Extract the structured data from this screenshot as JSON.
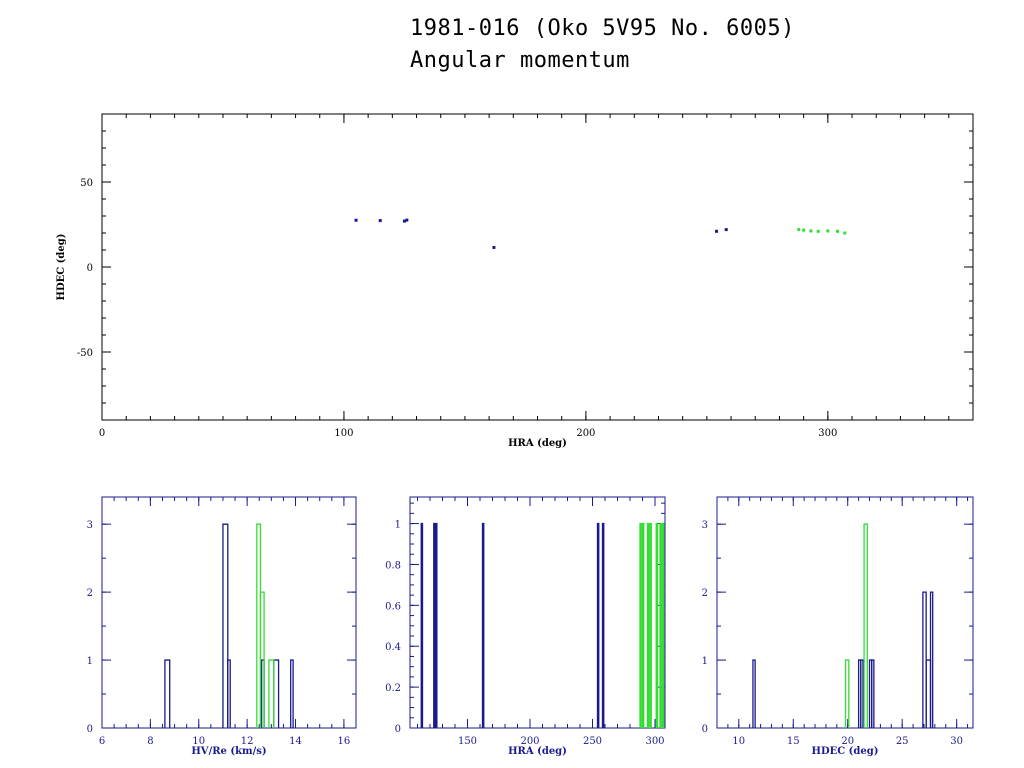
{
  "header": {
    "title": "1981-016 (Oko 5V95 No. 6005)",
    "subtitle": "Angular momentum"
  },
  "colors": {
    "blue": "#1a1a8c",
    "green": "#33dd33",
    "axis_dark": "#000000",
    "axis_blue": "#1a1a8c"
  },
  "chart_data": [
    {
      "type": "scatter",
      "xlabel": "HRA (deg)",
      "ylabel": "HDEC (deg)",
      "xlim": [
        0,
        360
      ],
      "ylim": [
        -90,
        90
      ],
      "xticks": [
        0,
        100,
        200,
        300
      ],
      "yticks": [
        -50,
        0,
        50
      ],
      "grid": false,
      "series": [
        {
          "color": "blue",
          "x": [
            105,
            115,
            125,
            126,
            162,
            254,
            258
          ],
          "y": [
            27.5,
            27.3,
            27.0,
            27.6,
            11.5,
            21.0,
            22.0
          ]
        },
        {
          "color": "green",
          "x": [
            288,
            290,
            293,
            296,
            300,
            304,
            307
          ],
          "y": [
            22.0,
            21.7,
            21.2,
            21.0,
            21.2,
            21.0,
            20.0
          ]
        }
      ]
    },
    {
      "type": "histogram",
      "xlabel": "HV/Re (km/s)",
      "ylabel": "",
      "xlim": [
        6,
        16.5
      ],
      "ylim": [
        0,
        3.4
      ],
      "xticks": [
        6,
        8,
        10,
        12,
        14,
        16
      ],
      "yticks": [
        0,
        1,
        2,
        3
      ],
      "series": [
        {
          "color": "blue",
          "bins": [
            [
              8.6,
              8.8,
              1
            ],
            [
              11.0,
              11.2,
              3
            ],
            [
              11.2,
              11.3,
              1
            ],
            [
              12.6,
              12.7,
              1
            ],
            [
              13.1,
              13.3,
              1
            ],
            [
              13.8,
              13.9,
              1
            ]
          ]
        },
        {
          "color": "green",
          "bins": [
            [
              12.4,
              12.55,
              3
            ],
            [
              12.55,
              12.7,
              2
            ],
            [
              12.9,
              13.1,
              1
            ]
          ]
        }
      ]
    },
    {
      "type": "histogram",
      "xlabel": "HRA (deg)",
      "ylabel": "",
      "xlim": [
        104,
        308
      ],
      "ylim": [
        0,
        1.13
      ],
      "xticks": [
        150,
        200,
        250,
        300
      ],
      "yticks": [
        0,
        0.2,
        0.4,
        0.6,
        0.8,
        1
      ],
      "series": [
        {
          "color": "blue",
          "bins": [
            [
              113,
              114,
              1
            ],
            [
              123,
              124,
              1
            ],
            [
              124.5,
              125.5,
              1
            ],
            [
              162,
              163,
              1
            ],
            [
              254,
              255,
              1
            ],
            [
              258,
              259,
              1
            ]
          ]
        },
        {
          "color": "green",
          "bins": [
            [
              288,
              289,
              1
            ],
            [
              290,
              291,
              1
            ],
            [
              294,
              295,
              1
            ],
            [
              296,
              297,
              1
            ],
            [
              301,
              302,
              1
            ],
            [
              304,
              305,
              1
            ],
            [
              306,
              307,
              1
            ]
          ]
        }
      ]
    },
    {
      "type": "histogram",
      "xlabel": "HDEC (deg)",
      "ylabel": "",
      "xlim": [
        8,
        31.5
      ],
      "ylim": [
        0,
        3.4
      ],
      "xticks": [
        10,
        15,
        20,
        25,
        30
      ],
      "yticks": [
        0,
        1,
        2,
        3
      ],
      "series": [
        {
          "color": "blue",
          "bins": [
            [
              11.3,
              11.5,
              1
            ],
            [
              21.0,
              21.2,
              1
            ],
            [
              21.2,
              21.4,
              1
            ],
            [
              22.0,
              22.2,
              1
            ],
            [
              22.2,
              22.4,
              1
            ],
            [
              26.9,
              27.2,
              2
            ],
            [
              27.2,
              27.6,
              1
            ],
            [
              27.6,
              27.8,
              2
            ]
          ]
        },
        {
          "color": "green",
          "bins": [
            [
              19.8,
              20.1,
              1
            ],
            [
              21.5,
              21.8,
              3
            ]
          ]
        }
      ]
    }
  ]
}
